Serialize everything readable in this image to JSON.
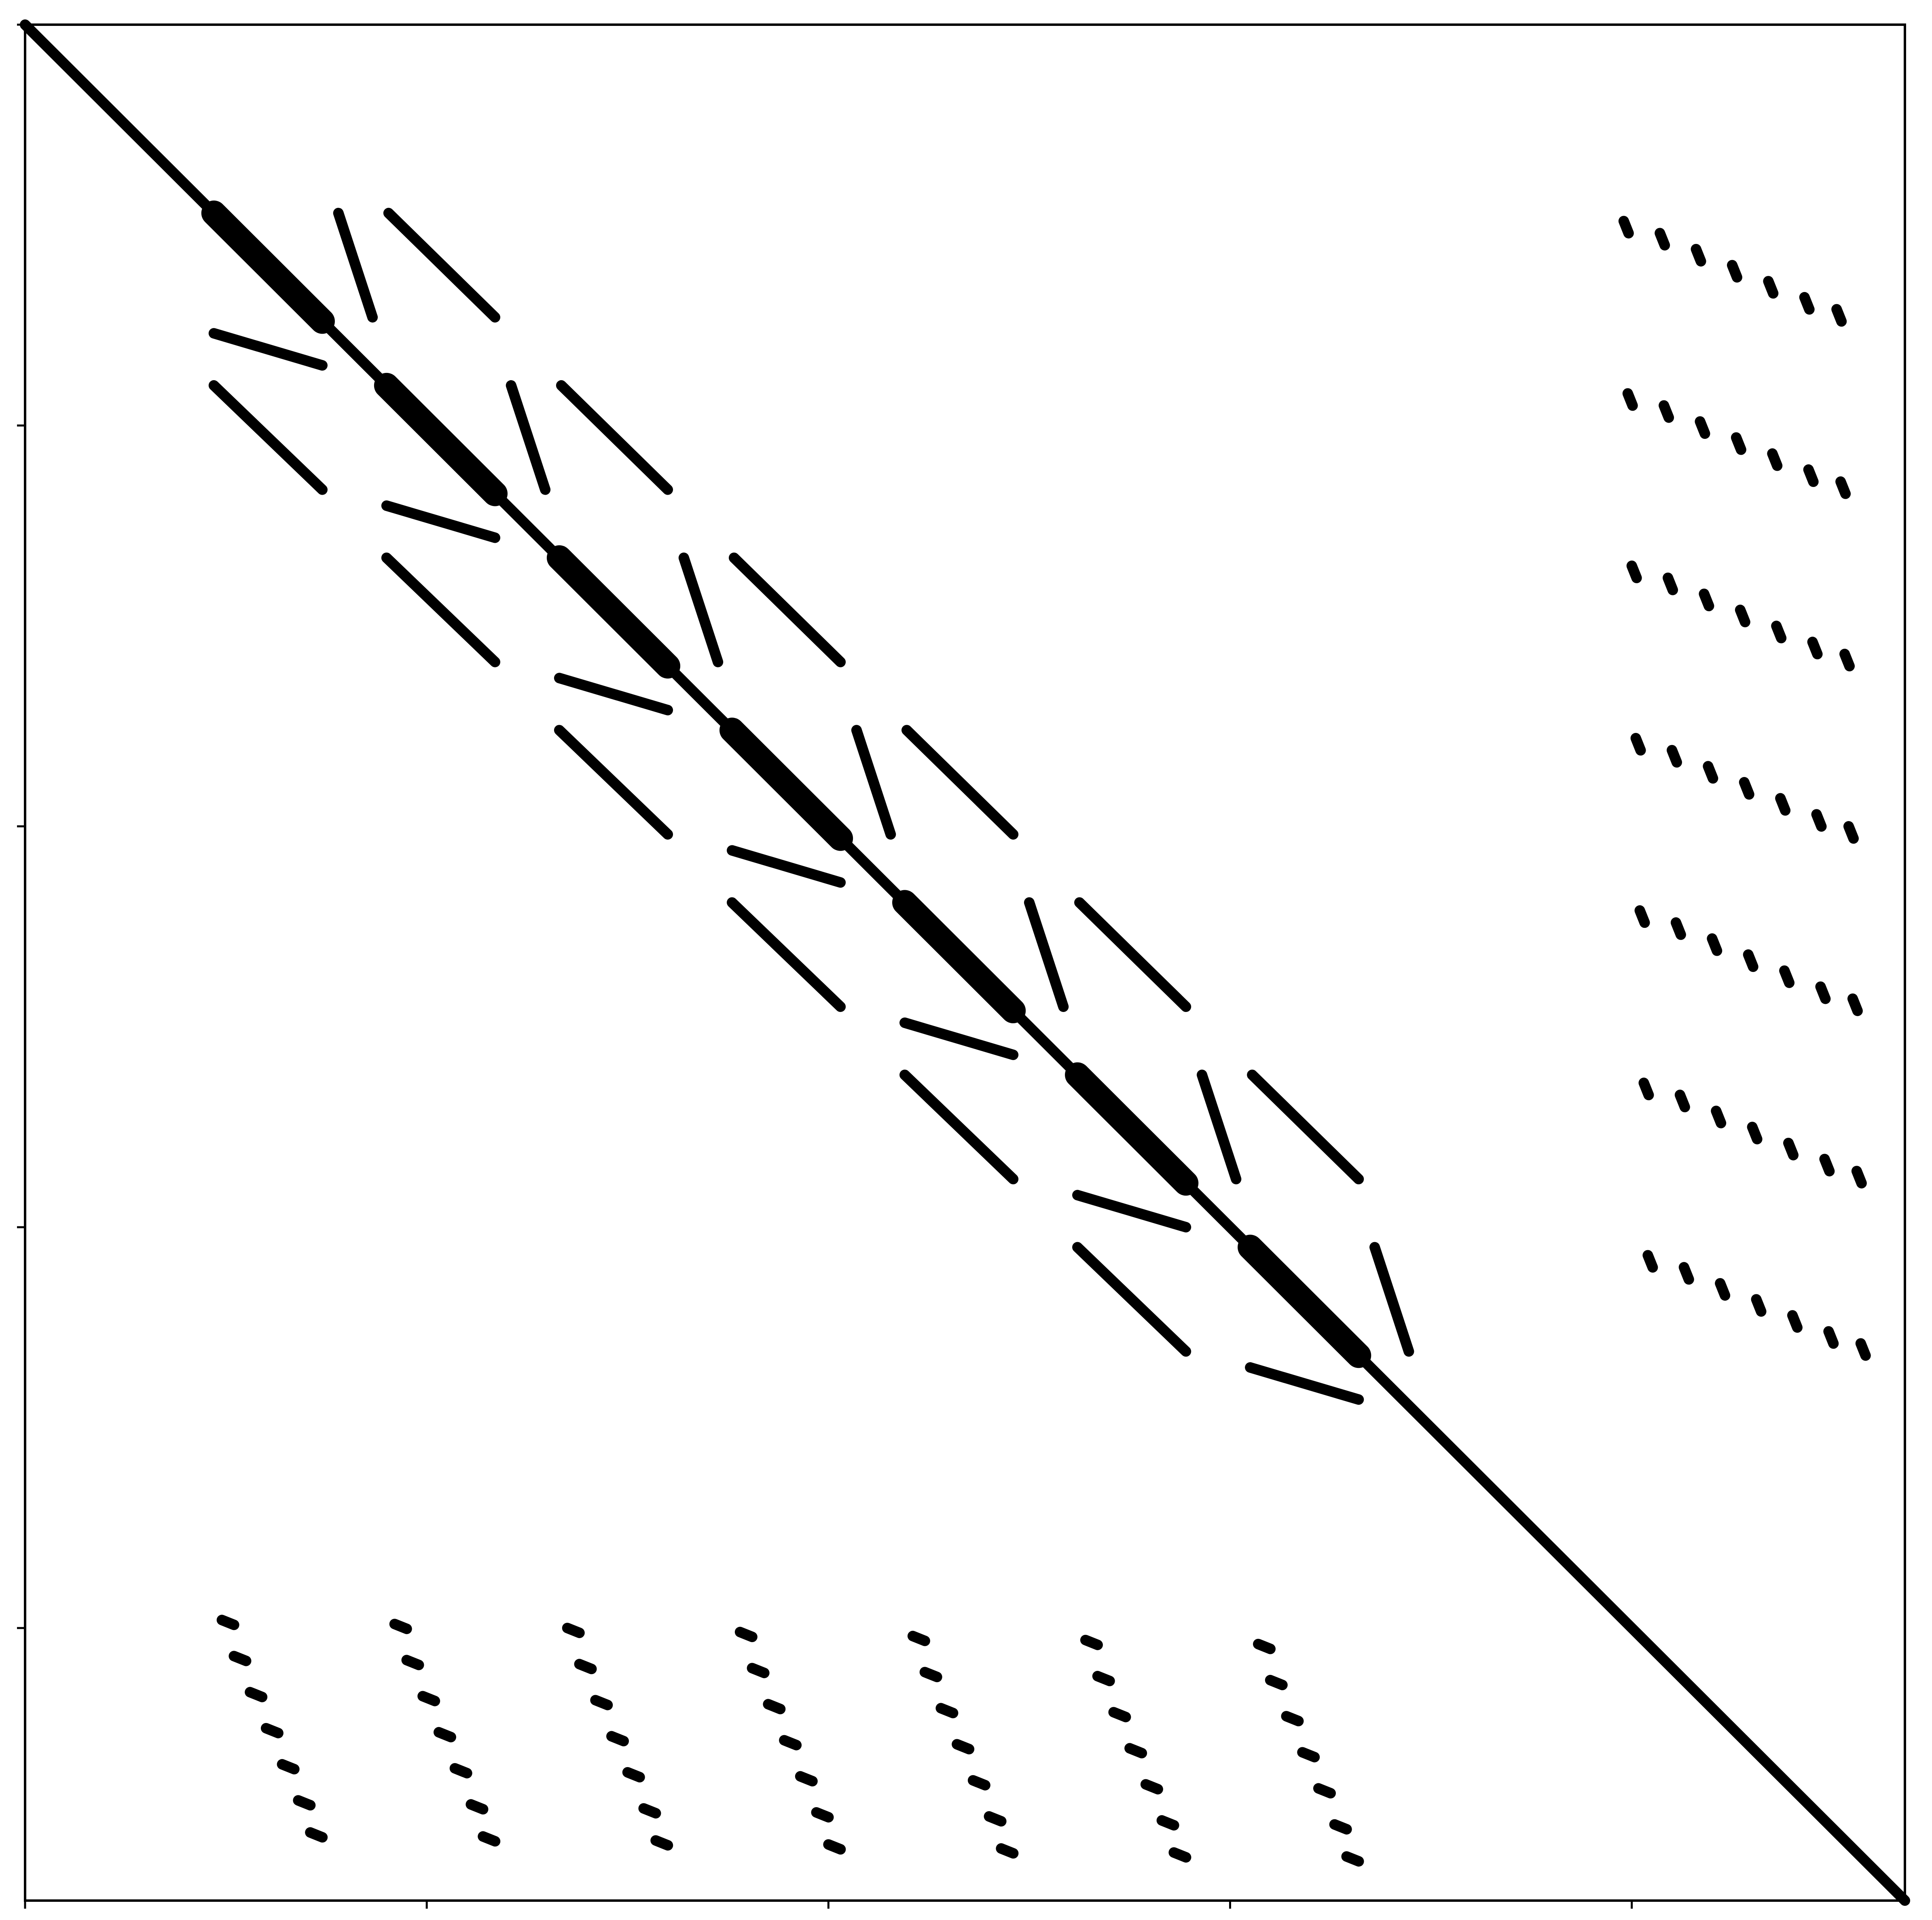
{
  "chart_data": {
    "type": "spy",
    "color": "#000000",
    "xlim": [
      0,
      468
    ],
    "ylim": [
      468,
      0
    ],
    "xticks": [
      0,
      100,
      200,
      300,
      400
    ],
    "yticks": [
      0,
      100,
      200,
      300,
      400
    ],
    "lines": [
      [
        0,
        0,
        468,
        468
      ],
      [
        78,
        47,
        86.5,
        73
      ],
      [
        121,
        90,
        129.5,
        116
      ],
      [
        164,
        133,
        172.5,
        159
      ],
      [
        207,
        176,
        215.5,
        202
      ],
      [
        250,
        219,
        258.5,
        245
      ],
      [
        293,
        262,
        301.5,
        288
      ],
      [
        336,
        305,
        344.5,
        331
      ],
      [
        90.5,
        47,
        117,
        73
      ],
      [
        133.5,
        90,
        160,
        116
      ],
      [
        176.5,
        133,
        203,
        159
      ],
      [
        219.5,
        176,
        246,
        202
      ],
      [
        262.5,
        219,
        289,
        245
      ],
      [
        305.5,
        262,
        332,
        288
      ],
      [
        47,
        77,
        74,
        85
      ],
      [
        90,
        120,
        117,
        128
      ],
      [
        133,
        163,
        160,
        171
      ],
      [
        176,
        206,
        203,
        214
      ],
      [
        219,
        249,
        246,
        257
      ],
      [
        262,
        292,
        289,
        300
      ],
      [
        305,
        335,
        332,
        343
      ],
      [
        47,
        90,
        74,
        116
      ],
      [
        90,
        133,
        117,
        159
      ],
      [
        133,
        176,
        160,
        202
      ],
      [
        176,
        219,
        203,
        245
      ],
      [
        219,
        262,
        246,
        288
      ],
      [
        262,
        305,
        289,
        331
      ]
    ],
    "bands": [
      [
        47,
        47,
        74,
        74
      ],
      [
        90,
        90,
        117,
        117
      ],
      [
        133,
        133,
        160,
        160
      ],
      [
        176,
        176,
        203,
        203
      ],
      [
        219,
        219,
        246,
        246
      ],
      [
        262,
        262,
        289,
        289
      ],
      [
        305,
        305,
        332,
        332
      ]
    ],
    "right_dots": [
      [
        398,
        49
      ],
      [
        407,
        52
      ],
      [
        416,
        56
      ],
      [
        425,
        60
      ],
      [
        434,
        64
      ],
      [
        443,
        68
      ],
      [
        451,
        71
      ],
      [
        399,
        92
      ],
      [
        408,
        95
      ],
      [
        417,
        99
      ],
      [
        426,
        103
      ],
      [
        435,
        107
      ],
      [
        444,
        111
      ],
      [
        452,
        114
      ],
      [
        400,
        135
      ],
      [
        409,
        138
      ],
      [
        418,
        142
      ],
      [
        427,
        146
      ],
      [
        436,
        150
      ],
      [
        445,
        154
      ],
      [
        453,
        157
      ],
      [
        401,
        178
      ],
      [
        410,
        181
      ],
      [
        419,
        185
      ],
      [
        428,
        189
      ],
      [
        437,
        193
      ],
      [
        446,
        197
      ],
      [
        454,
        200
      ],
      [
        402,
        221
      ],
      [
        411,
        224
      ],
      [
        420,
        228
      ],
      [
        429,
        232
      ],
      [
        438,
        236
      ],
      [
        447,
        240
      ],
      [
        455,
        243
      ],
      [
        403,
        264
      ],
      [
        412,
        267
      ],
      [
        421,
        271
      ],
      [
        430,
        275
      ],
      [
        439,
        279
      ],
      [
        448,
        283
      ],
      [
        456,
        286
      ],
      [
        404,
        307
      ],
      [
        413,
        310
      ],
      [
        422,
        314
      ],
      [
        431,
        318
      ],
      [
        440,
        322
      ],
      [
        449,
        326
      ],
      [
        457,
        329
      ]
    ],
    "bottom_dots": [
      [
        49,
        398
      ],
      [
        52,
        407
      ],
      [
        56,
        416
      ],
      [
        60,
        425
      ],
      [
        64,
        434
      ],
      [
        68,
        443
      ],
      [
        71,
        451
      ],
      [
        92,
        399
      ],
      [
        95,
        408
      ],
      [
        99,
        417
      ],
      [
        103,
        426
      ],
      [
        107,
        435
      ],
      [
        111,
        444
      ],
      [
        114,
        452
      ],
      [
        135,
        400
      ],
      [
        138,
        409
      ],
      [
        142,
        418
      ],
      [
        146,
        427
      ],
      [
        150,
        436
      ],
      [
        154,
        445
      ],
      [
        157,
        453
      ],
      [
        178,
        401
      ],
      [
        181,
        410
      ],
      [
        185,
        419
      ],
      [
        189,
        428
      ],
      [
        193,
        437
      ],
      [
        197,
        446
      ],
      [
        200,
        454
      ],
      [
        221,
        402
      ],
      [
        224,
        411
      ],
      [
        228,
        420
      ],
      [
        232,
        429
      ],
      [
        236,
        438
      ],
      [
        240,
        447
      ],
      [
        243,
        455
      ],
      [
        264,
        403
      ],
      [
        267,
        412
      ],
      [
        271,
        421
      ],
      [
        275,
        430
      ],
      [
        279,
        439
      ],
      [
        283,
        448
      ],
      [
        286,
        456
      ],
      [
        307,
        404
      ],
      [
        310,
        413
      ],
      [
        314,
        422
      ],
      [
        318,
        431
      ],
      [
        322,
        440
      ],
      [
        326,
        449
      ],
      [
        329,
        457
      ]
    ]
  }
}
